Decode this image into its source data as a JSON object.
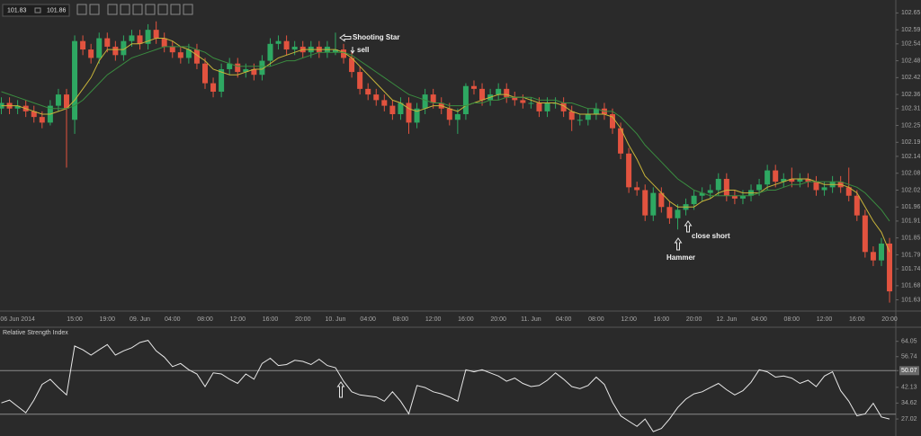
{
  "toolbar": {
    "bid": "101.83",
    "ask": "101.86"
  },
  "chart_data": {
    "type": "candlestick",
    "categories": [
      null,
      null,
      "06 Jun 2014",
      null,
      null,
      null,
      null,
      null,
      null,
      "15:00",
      null,
      null,
      null,
      "19:00",
      null,
      null,
      null,
      "09. Jun",
      null,
      null,
      null,
      "04:00",
      null,
      null,
      null,
      "08:00",
      null,
      null,
      null,
      "12:00",
      null,
      null,
      null,
      "16:00",
      null,
      null,
      null,
      "20:00",
      null,
      null,
      null,
      "10. Jun",
      null,
      null,
      null,
      "04:00",
      null,
      null,
      null,
      "08:00",
      null,
      null,
      null,
      "12:00",
      null,
      null,
      null,
      "16:00",
      null,
      null,
      null,
      "20:00",
      null,
      null,
      null,
      "11. Jun",
      null,
      null,
      null,
      "04:00",
      null,
      null,
      null,
      "08:00",
      null,
      null,
      null,
      "12:00",
      null,
      null,
      null,
      "16:00",
      null,
      null,
      null,
      "20:00",
      null,
      null,
      null,
      "12. Jun",
      null,
      null,
      null,
      "04:00",
      null,
      null,
      null,
      "08:00",
      null,
      null,
      null,
      "12:00",
      null,
      null,
      null,
      "16:00",
      null,
      null,
      null,
      "20:00"
    ],
    "open": [
      102.31,
      102.33,
      102.31,
      102.32,
      102.3,
      102.28,
      102.26,
      102.32,
      102.36,
      102.27,
      102.55,
      102.52,
      102.49,
      102.56,
      102.53,
      102.5,
      102.55,
      102.57,
      102.54,
      102.59,
      102.56,
      102.53,
      102.51,
      102.49,
      102.52,
      102.47,
      102.4,
      102.37,
      102.45,
      102.47,
      102.44,
      102.45,
      102.43,
      102.48,
      102.54,
      102.55,
      102.52,
      102.53,
      102.51,
      102.53,
      102.51,
      102.51,
      102.52,
      102.49,
      102.44,
      102.38,
      102.36,
      102.34,
      102.32,
      102.29,
      102.33,
      102.26,
      102.31,
      102.36,
      102.33,
      102.31,
      102.27,
      102.29,
      102.39,
      102.38,
      102.34,
      102.36,
      102.38,
      102.35,
      102.34,
      102.33,
      102.33,
      102.3,
      102.33,
      102.33,
      102.3,
      102.27,
      102.27,
      102.29,
      102.31,
      102.29,
      102.24,
      102.15,
      102.03,
      102.02,
      101.93,
      102.01,
      101.96,
      101.92,
      101.95,
      101.97,
      102.0,
      102.01,
      102.02,
      102.06,
      102.0,
      101.99,
      102.0,
      102.02,
      102.04,
      102.09,
      102.05,
      102.06,
      102.05,
      102.06,
      102.05,
      102.02,
      102.03,
      102.05,
      102.03,
      102.0,
      101.93,
      101.8,
      101.77,
      101.83
    ],
    "high": [
      102.35,
      102.35,
      102.34,
      102.34,
      102.32,
      102.3,
      102.34,
      102.38,
      102.38,
      102.57,
      102.57,
      102.54,
      102.58,
      102.58,
      102.55,
      102.57,
      102.59,
      102.59,
      102.61,
      102.62,
      102.58,
      102.55,
      102.53,
      102.54,
      102.54,
      102.49,
      102.42,
      102.47,
      102.49,
      102.49,
      102.47,
      102.47,
      102.5,
      102.56,
      102.57,
      102.57,
      102.55,
      102.55,
      102.55,
      102.55,
      102.55,
      102.58,
      102.54,
      102.51,
      102.46,
      102.4,
      102.38,
      102.36,
      102.34,
      102.35,
      102.35,
      102.33,
      102.38,
      102.38,
      102.35,
      102.33,
      102.31,
      102.4,
      102.41,
      102.4,
      102.38,
      102.4,
      102.4,
      102.37,
      102.36,
      102.35,
      102.35,
      102.35,
      102.35,
      102.35,
      102.32,
      102.29,
      102.31,
      102.33,
      102.33,
      102.31,
      102.26,
      102.17,
      102.05,
      102.04,
      102.03,
      102.03,
      101.98,
      101.97,
      101.99,
      102.02,
      102.03,
      102.04,
      102.08,
      102.08,
      102.02,
      102.02,
      102.04,
      102.06,
      102.11,
      102.11,
      102.08,
      102.1,
      102.08,
      102.08,
      102.07,
      102.05,
      102.07,
      102.07,
      102.1,
      102.02,
      101.95,
      101.82,
      101.85,
      101.85
    ],
    "low": [
      102.29,
      102.29,
      102.29,
      102.28,
      102.26,
      102.24,
      102.25,
      102.3,
      102.1,
      102.22,
      102.5,
      102.47,
      102.47,
      102.51,
      102.48,
      102.48,
      102.53,
      102.52,
      102.52,
      102.54,
      102.51,
      102.49,
      102.47,
      102.47,
      102.45,
      102.38,
      102.35,
      102.35,
      102.43,
      102.42,
      102.42,
      102.41,
      102.41,
      102.46,
      102.52,
      102.5,
      102.5,
      102.49,
      102.49,
      102.49,
      102.49,
      102.5,
      102.47,
      102.42,
      102.36,
      102.34,
      102.32,
      102.3,
      102.27,
      102.27,
      102.22,
      102.24,
      102.29,
      102.31,
      102.29,
      102.25,
      102.22,
      102.27,
      102.36,
      102.32,
      102.32,
      102.34,
      102.33,
      102.32,
      102.31,
      102.31,
      102.28,
      102.28,
      102.31,
      102.28,
      102.23,
      102.25,
      102.25,
      102.27,
      102.27,
      102.22,
      102.13,
      102.01,
      102.0,
      101.91,
      101.91,
      101.94,
      101.9,
      101.88,
      101.93,
      101.95,
      101.98,
      101.99,
      102.0,
      101.98,
      101.97,
      101.97,
      101.98,
      102.0,
      102.02,
      102.03,
      102.03,
      102.03,
      102.03,
      102.03,
      102.0,
      102.0,
      102.01,
      102.01,
      101.98,
      101.91,
      101.78,
      101.75,
      101.75,
      101.62
    ],
    "close": [
      102.33,
      102.31,
      102.32,
      102.3,
      102.28,
      102.26,
      102.32,
      102.36,
      102.31,
      102.55,
      102.52,
      102.49,
      102.56,
      102.53,
      102.5,
      102.55,
      102.57,
      102.54,
      102.59,
      102.56,
      102.53,
      102.51,
      102.49,
      102.52,
      102.47,
      102.4,
      102.37,
      102.45,
      102.47,
      102.44,
      102.45,
      102.43,
      102.48,
      102.54,
      102.55,
      102.52,
      102.53,
      102.51,
      102.53,
      102.51,
      102.53,
      102.52,
      102.49,
      102.44,
      102.38,
      102.36,
      102.34,
      102.32,
      102.29,
      102.33,
      102.26,
      102.31,
      102.36,
      102.33,
      102.31,
      102.27,
      102.29,
      102.39,
      102.38,
      102.34,
      102.36,
      102.38,
      102.35,
      102.34,
      102.33,
      102.33,
      102.3,
      102.33,
      102.33,
      102.3,
      102.27,
      102.27,
      102.29,
      102.31,
      102.29,
      102.24,
      102.15,
      102.03,
      102.02,
      101.93,
      102.01,
      101.96,
      101.92,
      101.95,
      101.97,
      102.0,
      102.01,
      102.02,
      102.06,
      102.0,
      101.99,
      102.0,
      102.02,
      102.04,
      102.09,
      102.05,
      102.06,
      102.05,
      102.06,
      102.05,
      102.02,
      102.03,
      102.05,
      102.03,
      102.0,
      101.93,
      101.8,
      101.77,
      101.83,
      101.66
    ],
    "up_color": "#2ea862",
    "down_color": "#e2533f",
    "overlays": [
      {
        "color": "#c8b43a",
        "values": [
          102.32,
          102.32,
          102.32,
          102.31,
          102.3,
          102.29,
          102.29,
          102.3,
          102.31,
          102.34,
          102.38,
          102.42,
          102.48,
          102.52,
          102.52,
          102.52,
          102.54,
          102.54,
          102.55,
          102.56,
          102.56,
          102.55,
          102.53,
          102.52,
          102.5,
          102.48,
          102.45,
          102.44,
          102.43,
          102.43,
          102.44,
          102.45,
          102.45,
          102.47,
          102.49,
          102.5,
          102.51,
          102.52,
          102.52,
          102.52,
          102.52,
          102.52,
          102.51,
          102.49,
          102.46,
          102.43,
          102.4,
          102.37,
          102.34,
          102.33,
          102.31,
          102.3,
          102.31,
          102.32,
          102.32,
          102.31,
          102.3,
          102.32,
          102.33,
          102.34,
          102.35,
          102.36,
          102.36,
          102.35,
          102.35,
          102.34,
          102.33,
          102.33,
          102.33,
          102.32,
          102.3,
          102.29,
          102.29,
          102.29,
          102.29,
          102.28,
          102.24,
          102.18,
          102.13,
          102.07,
          102.04,
          102.01,
          101.98,
          101.96,
          101.96,
          101.96,
          101.98,
          101.99,
          102.01,
          102.02,
          102.02,
          102.01,
          102.01,
          102.01,
          102.03,
          102.04,
          102.05,
          102.06,
          102.06,
          102.06,
          102.05,
          102.04,
          102.04,
          102.04,
          102.03,
          102.01,
          101.96,
          101.91,
          101.87,
          101.8
        ]
      },
      {
        "color": "#3a8c40",
        "values": [
          102.37,
          102.36,
          102.35,
          102.34,
          102.33,
          102.32,
          102.31,
          102.31,
          102.31,
          102.32,
          102.34,
          102.37,
          102.4,
          102.43,
          102.45,
          102.47,
          102.49,
          102.5,
          102.51,
          102.52,
          102.53,
          102.53,
          102.53,
          102.53,
          102.52,
          102.51,
          102.49,
          102.48,
          102.47,
          102.46,
          102.46,
          102.46,
          102.46,
          102.46,
          102.47,
          102.48,
          102.48,
          102.49,
          102.5,
          102.51,
          102.51,
          102.51,
          102.51,
          102.5,
          102.48,
          102.46,
          102.44,
          102.42,
          102.4,
          102.38,
          102.36,
          102.35,
          102.34,
          102.33,
          102.33,
          102.32,
          102.32,
          102.32,
          102.33,
          102.33,
          102.34,
          102.34,
          102.35,
          102.35,
          102.35,
          102.35,
          102.34,
          102.34,
          102.34,
          102.33,
          102.33,
          102.32,
          102.31,
          102.31,
          102.3,
          102.3,
          102.28,
          102.25,
          102.22,
          102.18,
          102.15,
          102.12,
          102.09,
          102.06,
          102.04,
          102.02,
          102.01,
          102.0,
          102.0,
          102.0,
          102.0,
          102.0,
          102.0,
          102.01,
          102.02,
          102.02,
          102.03,
          102.04,
          102.04,
          102.05,
          102.05,
          102.05,
          102.05,
          102.05,
          102.04,
          102.03,
          102.01,
          101.98,
          101.95,
          101.91
        ]
      }
    ],
    "ylim": [
      101.59,
      102.68
    ],
    "yticks": [
      102.65,
      102.59,
      102.54,
      102.48,
      102.42,
      102.36,
      102.31,
      102.25,
      102.19,
      102.14,
      102.08,
      102.02,
      101.96,
      101.91,
      101.85,
      101.79,
      101.74,
      101.68,
      101.63
    ],
    "annotations": [
      "Shooting Star",
      "sell",
      "close short",
      "Hammer"
    ],
    "rsi": {
      "title": "Relative Strength Index",
      "color": "#e8e8e8",
      "values": [
        34.7,
        36.0,
        33.0,
        30.0,
        36.0,
        43.5,
        45.9,
        42.0,
        38.5,
        61.8,
        60.0,
        57.5,
        60.0,
        62.5,
        57.5,
        59.5,
        61.0,
        63.5,
        64.5,
        59.5,
        56.5,
        52.0,
        53.5,
        50.5,
        48.5,
        42.5,
        49.0,
        48.5,
        46.0,
        44.0,
        48.5,
        46.0,
        53.5,
        56.0,
        52.5,
        53.0,
        55.0,
        54.5,
        53.0,
        55.5,
        52.5,
        51.5,
        45.0,
        40.0,
        38.5,
        38.0,
        37.5,
        35.5,
        40.0,
        35.5,
        29.5,
        43.0,
        42.0,
        40.0,
        39.0,
        37.5,
        35.5,
        50.5,
        49.5,
        50.5,
        49.0,
        47.5,
        45.0,
        46.5,
        44.0,
        42.5,
        43.0,
        45.5,
        49.0,
        46.0,
        42.5,
        41.5,
        43.0,
        47.0,
        43.5,
        35.0,
        28.5,
        26.0,
        23.5,
        27.0,
        21.0,
        22.5,
        27.0,
        32.5,
        36.5,
        39.0,
        40.0,
        42.0,
        44.0,
        41.0,
        38.5,
        40.5,
        44.5,
        50.5,
        49.5,
        47.0,
        47.5,
        46.5,
        44.0,
        45.5,
        42.5,
        47.5,
        49.5,
        40.5,
        35.5,
        28.5,
        29.5,
        34.5,
        28.0,
        27.0
      ],
      "ylim": [
        20.2,
        68.2
      ],
      "yticks": [
        64.05,
        56.74,
        50.07,
        42.13,
        34.62,
        27.02
      ],
      "levels": [
        50.07,
        29.3
      ]
    }
  }
}
